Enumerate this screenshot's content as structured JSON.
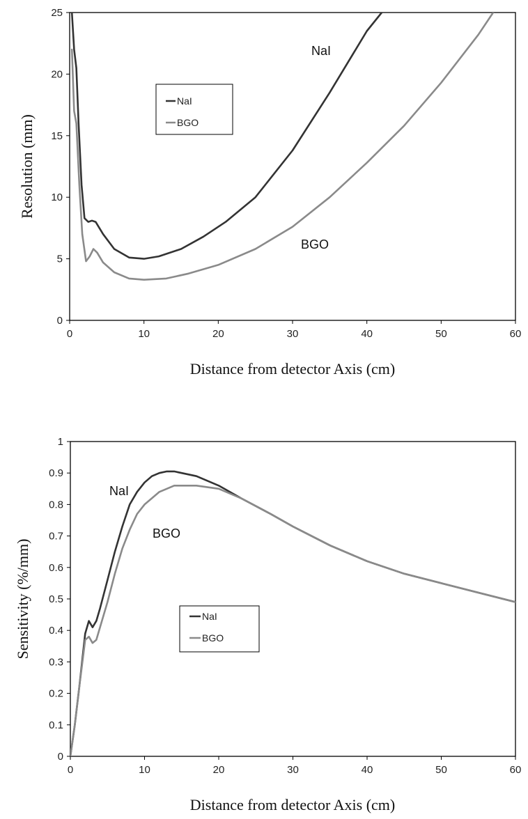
{
  "chart_data": [
    {
      "type": "line",
      "xlabel": "Distance from detector Axis (cm)",
      "ylabel": "Resolution (mm)",
      "xlim": [
        0,
        60
      ],
      "ylim": [
        0,
        25
      ],
      "xticks": [
        "0",
        "10",
        "20",
        "30",
        "40",
        "50",
        "60"
      ],
      "yticks": [
        "0",
        "5",
        "10",
        "15",
        "20",
        "25"
      ],
      "grid": false,
      "legend_position": "upper-left-center",
      "legend": [
        "NaI",
        "BGO"
      ],
      "annotations": [
        "NaI",
        "BGO"
      ],
      "colors": {
        "NaI": "#333333",
        "BGO": "#8a8a8a"
      },
      "series": [
        {
          "name": "NaI",
          "x": [
            0.3,
            0.6,
            0.9,
            1.2,
            1.6,
            2.0,
            2.5,
            3.0,
            3.5,
            4.5,
            6,
            8,
            10,
            12,
            15,
            18,
            21,
            25,
            30,
            35,
            40,
            42
          ],
          "y": [
            25,
            22,
            20.5,
            16,
            11,
            8.3,
            8.0,
            8.1,
            8.0,
            7.0,
            5.8,
            5.1,
            5.0,
            5.2,
            5.8,
            6.8,
            8.0,
            10.0,
            13.8,
            18.5,
            23.5,
            25
          ]
        },
        {
          "name": "BGO",
          "x": [
            0.3,
            0.6,
            0.9,
            1.3,
            1.7,
            2.2,
            2.7,
            3.2,
            3.7,
            4.5,
            6,
            8,
            10,
            13,
            16,
            20,
            25,
            30,
            35,
            40,
            45,
            50,
            55,
            57
          ],
          "y": [
            22,
            17,
            16,
            11,
            7.0,
            4.8,
            5.2,
            5.8,
            5.5,
            4.7,
            3.9,
            3.4,
            3.3,
            3.4,
            3.8,
            4.5,
            5.8,
            7.6,
            10.0,
            12.8,
            15.8,
            19.3,
            23.2,
            25
          ]
        }
      ]
    },
    {
      "type": "line",
      "xlabel": "Distance from detector Axis (cm)",
      "ylabel": "Sensitivity (%/mm)",
      "xlim": [
        0,
        60
      ],
      "ylim": [
        0,
        1
      ],
      "xticks": [
        "0",
        "10",
        "20",
        "30",
        "40",
        "50",
        "60"
      ],
      "yticks": [
        "0",
        "0.1",
        "0.2",
        "0.3",
        "0.4",
        "0.5",
        "0.6",
        "0.7",
        "0.8",
        "0.9",
        "1"
      ],
      "grid": false,
      "legend_position": "center",
      "legend": [
        "NaI",
        "BGO"
      ],
      "annotations": [
        "NaI",
        "BGO"
      ],
      "colors": {
        "NaI": "#333333",
        "BGO": "#8a8a8a"
      },
      "series": [
        {
          "name": "NaI",
          "x": [
            0,
            0.6,
            1.2,
            2.0,
            2.5,
            3.0,
            3.5,
            4.0,
            5,
            6,
            7,
            8,
            9,
            10,
            11,
            12,
            13,
            14,
            15,
            17,
            20,
            23,
            27,
            30,
            35,
            40,
            45,
            50,
            55,
            60
          ],
          "y": [
            0.0,
            0.1,
            0.22,
            0.39,
            0.43,
            0.41,
            0.43,
            0.47,
            0.56,
            0.65,
            0.73,
            0.8,
            0.84,
            0.87,
            0.89,
            0.9,
            0.905,
            0.905,
            0.9,
            0.89,
            0.86,
            0.82,
            0.77,
            0.73,
            0.67,
            0.62,
            0.58,
            0.55,
            0.52,
            0.49
          ]
        },
        {
          "name": "BGO",
          "x": [
            0,
            0.6,
            1.2,
            2.0,
            2.5,
            3.0,
            3.5,
            4.0,
            5,
            6,
            7,
            8,
            9,
            10,
            11,
            12,
            13,
            14,
            15,
            17,
            20,
            23,
            27,
            30,
            35,
            40,
            45,
            50,
            55,
            60
          ],
          "y": [
            0.0,
            0.1,
            0.22,
            0.37,
            0.38,
            0.36,
            0.37,
            0.41,
            0.49,
            0.58,
            0.66,
            0.72,
            0.77,
            0.8,
            0.82,
            0.84,
            0.85,
            0.86,
            0.86,
            0.86,
            0.85,
            0.82,
            0.77,
            0.73,
            0.67,
            0.62,
            0.58,
            0.55,
            0.52,
            0.49
          ]
        }
      ]
    }
  ]
}
